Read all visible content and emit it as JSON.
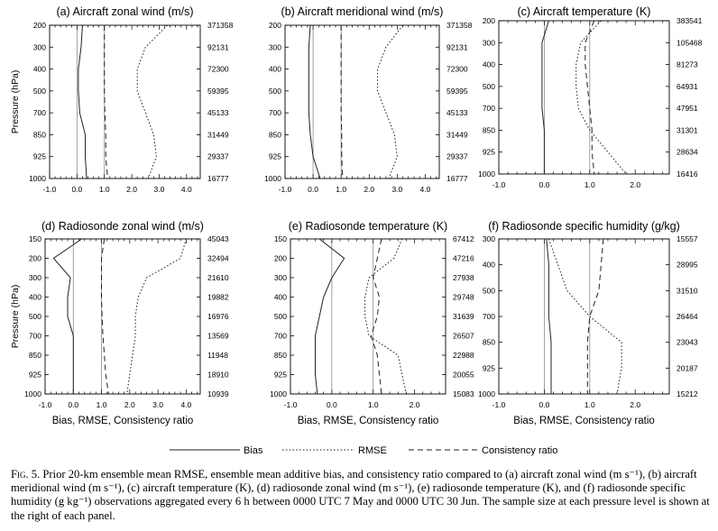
{
  "chart_data": [
    {
      "type": "line",
      "title": "(a) Aircraft zonal wind (m/s)",
      "ylabel": "Pressure (hPa)",
      "xlabel": "",
      "y_levels": [
        200,
        300,
        400,
        500,
        700,
        850,
        925,
        1000
      ],
      "y_tick_labels": [
        "200",
        "300",
        "400",
        "500",
        "700",
        "850",
        "925",
        "1000"
      ],
      "xlim": [
        -1.0,
        4.5
      ],
      "x_ticks": [
        -1.0,
        0.0,
        1.0,
        2.0,
        3.0,
        4.0
      ],
      "x_tick_labels": [
        "-1.0",
        "0.0",
        "1.0",
        "2.0",
        "3.0",
        "4.0"
      ],
      "sample_size": [
        "371358",
        "92131",
        "72300",
        "59395",
        "45133",
        "31449",
        "29337",
        "16777"
      ],
      "series": [
        {
          "name": "Bias",
          "values": [
            0.2,
            0.15,
            0.05,
            0.05,
            0.1,
            0.3,
            0.3,
            0.35
          ]
        },
        {
          "name": "RMSE",
          "values": [
            3.3,
            2.5,
            2.2,
            2.2,
            2.5,
            2.8,
            2.9,
            2.6
          ]
        },
        {
          "name": "Consistency ratio",
          "values": [
            1.0,
            1.0,
            1.0,
            1.0,
            1.02,
            1.05,
            1.05,
            1.12
          ]
        }
      ]
    },
    {
      "type": "line",
      "title": "(b) Aircraft meridional wind (m/s)",
      "xlabel": "",
      "y_levels": [
        200,
        300,
        400,
        500,
        700,
        850,
        925,
        1000
      ],
      "y_tick_labels": [
        "200",
        "300",
        "400",
        "500",
        "700",
        "850",
        "925",
        "1000"
      ],
      "xlim": [
        -1.0,
        4.5
      ],
      "x_ticks": [
        -1.0,
        0.0,
        1.0,
        2.0,
        3.0,
        4.0
      ],
      "x_tick_labels": [
        "-1.0",
        "0.0",
        "1.0",
        "2.0",
        "3.0",
        "4.0"
      ],
      "sample_size": [
        "371358",
        "92131",
        "72300",
        "59395",
        "45133",
        "31449",
        "29337",
        "16777"
      ],
      "series": [
        {
          "name": "Bias",
          "values": [
            -0.1,
            -0.15,
            -0.15,
            -0.15,
            -0.15,
            -0.1,
            0.0,
            0.25
          ]
        },
        {
          "name": "RMSE",
          "values": [
            3.2,
            2.6,
            2.3,
            2.3,
            2.6,
            2.9,
            3.0,
            2.7
          ]
        },
        {
          "name": "Consistency ratio",
          "values": [
            1.0,
            1.0,
            1.0,
            1.0,
            1.0,
            1.02,
            1.02,
            1.05
          ]
        }
      ]
    },
    {
      "type": "line",
      "title": "(c) Aircraft temperature (K)",
      "xlabel": "",
      "y_levels": [
        200,
        300,
        400,
        500,
        700,
        850,
        925,
        1000
      ],
      "y_tick_labels": [
        "200",
        "300",
        "400",
        "500",
        "700",
        "850",
        "925",
        "1000"
      ],
      "xlim": [
        -1.0,
        2.75
      ],
      "x_ticks": [
        -1.0,
        0.0,
        1.0,
        2.0
      ],
      "x_tick_labels": [
        "-1.0",
        "0.0",
        "1.0",
        "2.0"
      ],
      "sample_size": [
        "383541",
        "105468",
        "81273",
        "64931",
        "47951",
        "31301",
        "28634",
        "16416"
      ],
      "series": [
        {
          "name": "Bias",
          "values": [
            0.1,
            -0.05,
            -0.05,
            -0.05,
            -0.05,
            0.0,
            0.0,
            0.0
          ]
        },
        {
          "name": "RMSE",
          "values": [
            1.25,
            0.8,
            0.7,
            0.7,
            0.75,
            1.0,
            1.4,
            1.8
          ]
        },
        {
          "name": "Consistency ratio",
          "values": [
            1.1,
            0.9,
            0.9,
            0.95,
            1.0,
            1.05,
            1.05,
            1.1
          ]
        }
      ]
    },
    {
      "type": "line",
      "title": "(d) Radiosonde zonal wind (m/s)",
      "ylabel": "Pressure (hPa)",
      "xlabel": "Bias, RMSE, Consistency ratio",
      "y_levels": [
        150,
        200,
        300,
        400,
        500,
        700,
        850,
        925,
        1000
      ],
      "y_tick_labels": [
        "150",
        "200",
        "300",
        "400",
        "500",
        "700",
        "850",
        "925",
        "1000"
      ],
      "xlim": [
        -1.0,
        4.5
      ],
      "x_ticks": [
        -1.0,
        0.0,
        1.0,
        2.0,
        3.0,
        4.0
      ],
      "x_tick_labels": [
        "-1.0",
        "0.0",
        "1.0",
        "2.0",
        "3.0",
        "4.0"
      ],
      "sample_size": [
        "45043",
        "32494",
        "21610",
        "19882",
        "16976",
        "13569",
        "11948",
        "18910",
        "10939"
      ],
      "series": [
        {
          "name": "Bias",
          "values": [
            0.3,
            -0.7,
            -0.1,
            -0.2,
            -0.2,
            0.0,
            0.0,
            0.0,
            0.0
          ]
        },
        {
          "name": "RMSE",
          "values": [
            4.0,
            3.8,
            2.6,
            2.3,
            2.2,
            2.2,
            2.1,
            2.0,
            1.9
          ]
        },
        {
          "name": "Consistency ratio",
          "values": [
            1.1,
            1.0,
            1.0,
            1.0,
            1.02,
            1.05,
            1.1,
            1.15,
            1.25
          ]
        }
      ]
    },
    {
      "type": "line",
      "title": "(e) Radiosonde temperature (K)",
      "xlabel": "Bias, RMSE, Consistency ratio",
      "y_levels": [
        150,
        200,
        300,
        400,
        500,
        700,
        850,
        925,
        1000
      ],
      "y_tick_labels": [
        "150",
        "200",
        "300",
        "400",
        "500",
        "700",
        "850",
        "925",
        "1000"
      ],
      "xlim": [
        -1.0,
        2.75
      ],
      "x_ticks": [
        -1.0,
        0.0,
        1.0,
        2.0
      ],
      "x_tick_labels": [
        "-1.0",
        "0.0",
        "1.0",
        "2.0"
      ],
      "sample_size": [
        "67412",
        "47216",
        "27938",
        "29748",
        "31639",
        "26507",
        "22988",
        "20055",
        "15083"
      ],
      "series": [
        {
          "name": "Bias",
          "values": [
            -0.3,
            0.3,
            0.0,
            -0.2,
            -0.3,
            -0.4,
            -0.4,
            -0.4,
            -0.35
          ]
        },
        {
          "name": "RMSE",
          "values": [
            1.7,
            1.5,
            0.9,
            0.8,
            0.8,
            0.9,
            1.6,
            1.7,
            1.8
          ]
        },
        {
          "name": "Consistency ratio",
          "values": [
            1.2,
            1.1,
            1.0,
            1.15,
            1.1,
            0.95,
            1.1,
            1.15,
            1.2
          ]
        }
      ]
    },
    {
      "type": "line",
      "title": "(f) Radiosonde specific humidity (g/kg)",
      "xlabel": "Bias, RMSE, Consistency ratio",
      "y_levels": [
        300,
        400,
        500,
        700,
        850,
        925,
        1000
      ],
      "y_tick_labels": [
        "300",
        "400",
        "500",
        "700",
        "850",
        "925",
        "1000"
      ],
      "xlim": [
        -1.0,
        2.75
      ],
      "x_ticks": [
        -1.0,
        0.0,
        1.0,
        2.0
      ],
      "x_tick_labels": [
        "-1.0",
        "0.0",
        "1.0",
        "2.0"
      ],
      "sample_size": [
        "15557",
        "28995",
        "31510",
        "26464",
        "23043",
        "20187",
        "15212"
      ],
      "series": [
        {
          "name": "Bias",
          "values": [
            0.05,
            0.1,
            0.1,
            0.1,
            0.15,
            0.15,
            0.15
          ]
        },
        {
          "name": "RMSE",
          "values": [
            0.1,
            0.3,
            0.5,
            1.0,
            1.7,
            1.7,
            1.6
          ]
        },
        {
          "name": "Consistency ratio",
          "values": [
            1.3,
            1.25,
            1.2,
            1.0,
            0.95,
            0.95,
            0.95
          ]
        }
      ]
    }
  ],
  "legend": {
    "bias_label": "Bias",
    "rmse_label": "RMSE",
    "consistency_label": "Consistency ratio"
  },
  "caption": {
    "fig_label": "Fig. 5.",
    "text": " Prior 20-km ensemble mean RMSE, ensemble mean additive bias, and consistency ratio compared to (a) aircraft zonal wind (m s⁻¹), (b) aircraft meridional wind (m s⁻¹), (c) aircraft temperature (K), (d) radiosonde zonal wind (m s⁻¹), (e) radiosonde temperature (K), and (f) radiosonde specific humidity (g kg⁻¹) observations aggregated every 6 h between 0000 UTC 7 May and 0000 UTC 30 Jun. The sample size at each pressure level is shown at the right of each panel."
  }
}
